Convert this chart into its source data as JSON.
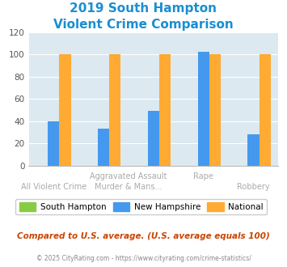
{
  "title_line1": "2019 South Hampton",
  "title_line2": "Violent Crime Comparison",
  "title_color": "#1a8fd1",
  "categories": [
    "All Violent Crime",
    "Aggravated Assault",
    "Murder & Mans...",
    "Rape",
    "Robbery"
  ],
  "south_hampton": [
    0,
    0,
    0,
    0,
    0
  ],
  "new_hampshire": [
    40,
    33,
    49,
    102,
    28
  ],
  "national": [
    100,
    100,
    100,
    100,
    100
  ],
  "sh_color": "#88cc44",
  "nh_color": "#4499ee",
  "nat_color": "#ffaa33",
  "ylim": [
    0,
    120
  ],
  "yticks": [
    0,
    20,
    40,
    60,
    80,
    100,
    120
  ],
  "bg_color": "#dce9f0",
  "legend_labels": [
    "South Hampton",
    "New Hampshire",
    "National"
  ],
  "footnote1": "Compared to U.S. average. (U.S. average equals 100)",
  "footnote2": "© 2025 CityRating.com - https://www.cityrating.com/crime-statistics/",
  "footnote1_color": "#cc4400",
  "footnote2_color": "#888888",
  "label_color": "#aaaaaa"
}
